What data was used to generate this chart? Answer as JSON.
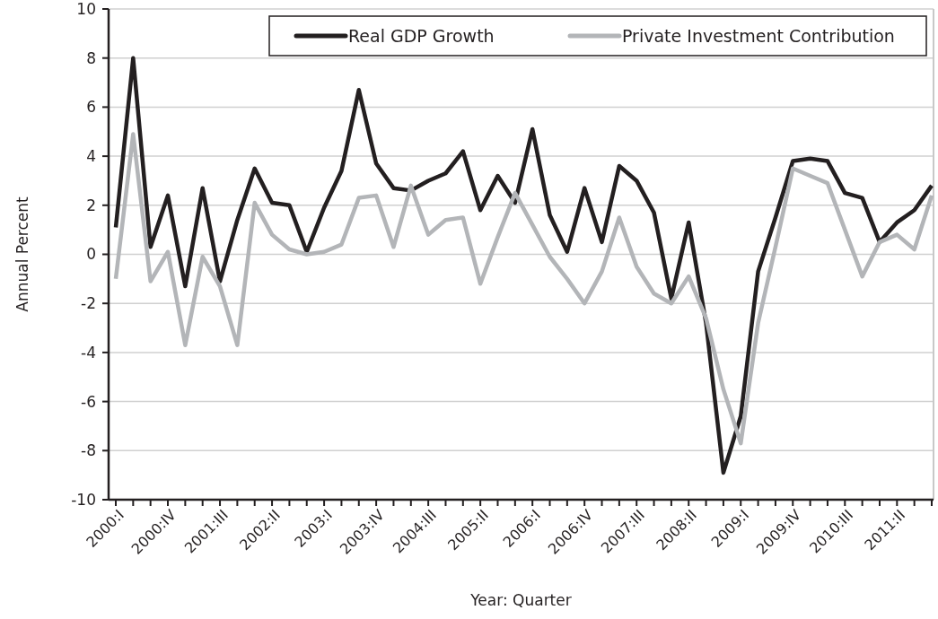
{
  "chart_data": {
    "type": "line",
    "xlabel": "Year: Quarter",
    "ylabel": "Annual Percent",
    "categories": [
      "2000:I",
      null,
      null,
      "2000:IV",
      null,
      null,
      "2001:III",
      null,
      null,
      "2002:II",
      null,
      null,
      "2003:I",
      null,
      null,
      "2003:IV",
      null,
      null,
      "2004:III",
      null,
      null,
      "2005:II",
      null,
      null,
      "2006:I",
      null,
      null,
      "2006:IV",
      null,
      null,
      "2007:III",
      null,
      null,
      "2008:II",
      null,
      null,
      "2009:I",
      null,
      null,
      "2009:IV",
      null,
      null,
      "2010:III",
      null,
      null,
      "2011:II",
      null,
      null
    ],
    "series": [
      {
        "name": "Real GDP Growth",
        "color": "#231f20",
        "values": [
          1.1,
          8.0,
          0.3,
          2.4,
          -1.3,
          2.7,
          -1.1,
          1.4,
          3.5,
          2.1,
          2.0,
          0.1,
          1.9,
          3.4,
          6.7,
          3.7,
          2.7,
          2.6,
          3.0,
          3.3,
          4.2,
          1.8,
          3.2,
          2.1,
          5.1,
          1.6,
          0.1,
          2.7,
          0.5,
          3.6,
          3.0,
          1.7,
          -1.8,
          1.3,
          -2.8,
          -8.9,
          -6.6,
          -0.7,
          1.5,
          3.8,
          3.9,
          3.8,
          2.5,
          2.3,
          0.5,
          1.3,
          1.8,
          2.8
        ]
      },
      {
        "name": "Private Investment Contribution",
        "color": "#b3b5b8",
        "values": [
          -1.0,
          4.9,
          -1.1,
          0.1,
          -3.7,
          -0.1,
          -1.3,
          -3.7,
          2.1,
          0.8,
          0.2,
          0.0,
          0.1,
          0.4,
          2.3,
          2.4,
          0.3,
          2.8,
          0.8,
          1.4,
          1.5,
          -1.2,
          0.7,
          2.5,
          1.2,
          -0.1,
          -1.0,
          -2.0,
          -0.7,
          1.5,
          -0.5,
          -1.6,
          -2.0,
          -0.9,
          -2.6,
          -5.5,
          -7.7,
          -2.8,
          0.3,
          3.5,
          3.2,
          2.9,
          1.0,
          -0.9,
          0.5,
          0.8,
          0.2,
          2.4
        ]
      }
    ],
    "ylim": [
      -10,
      10
    ],
    "yticks": [
      -10,
      -8,
      -6,
      -4,
      -2,
      0,
      2,
      4,
      6,
      8,
      10
    ],
    "grid": "y",
    "legend": "top right",
    "marker": "none",
    "line_style": "solid"
  }
}
